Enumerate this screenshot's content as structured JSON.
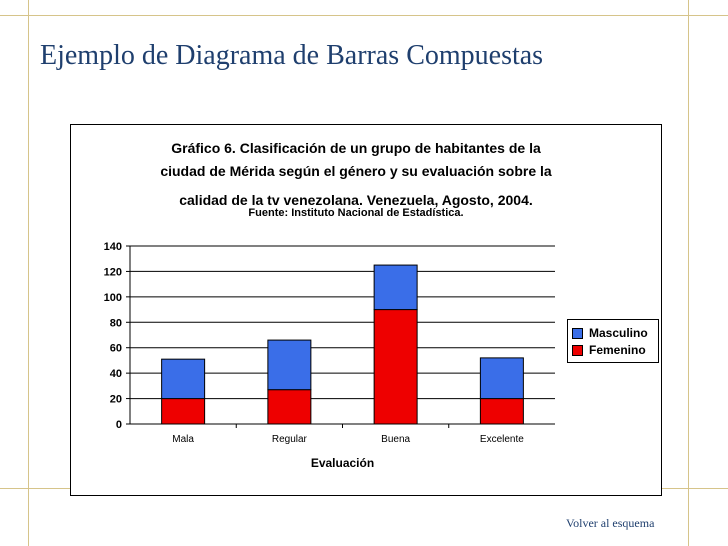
{
  "slide": {
    "title": "Ejemplo de Diagrama de Barras Compuestas",
    "footer_link": "Volver al esquema"
  },
  "colors": {
    "masculino": "#3a6ee8",
    "femenino": "#ee0000",
    "title": "#1f3f6e",
    "border": "#d6c48a"
  },
  "chart_data": {
    "type": "bar",
    "stacked": true,
    "title": "Gráfico 6. Clasificación de un grupo de habitantes de la ciudad de Mérida según el género y su evaluación sobre la calidad de la tv venezolana. Venezuela, Agosto, 2004.",
    "title_lines": [
      "Gráfico 6. Clasificación de un grupo de habitantes de la",
      "ciudad de Mérida según el género y su evaluación sobre la",
      "calidad de la tv venezolana. Venezuela, Agosto, 2004."
    ],
    "subtitle": "Fuente: Instituto Nacional de Estadística.",
    "xlabel": "Evaluación",
    "ylabel": "",
    "categories": [
      "Mala",
      "Regular",
      "Buena",
      "Excelente"
    ],
    "series": [
      {
        "name": "Femenino",
        "values": [
          20,
          27,
          90,
          20
        ]
      },
      {
        "name": "Masculino",
        "values": [
          31,
          39,
          35,
          32
        ]
      }
    ],
    "ylim": [
      0,
      140
    ],
    "yticks": [
      0,
      20,
      40,
      60,
      80,
      100,
      120,
      140
    ],
    "grid": true,
    "legend": "right"
  }
}
